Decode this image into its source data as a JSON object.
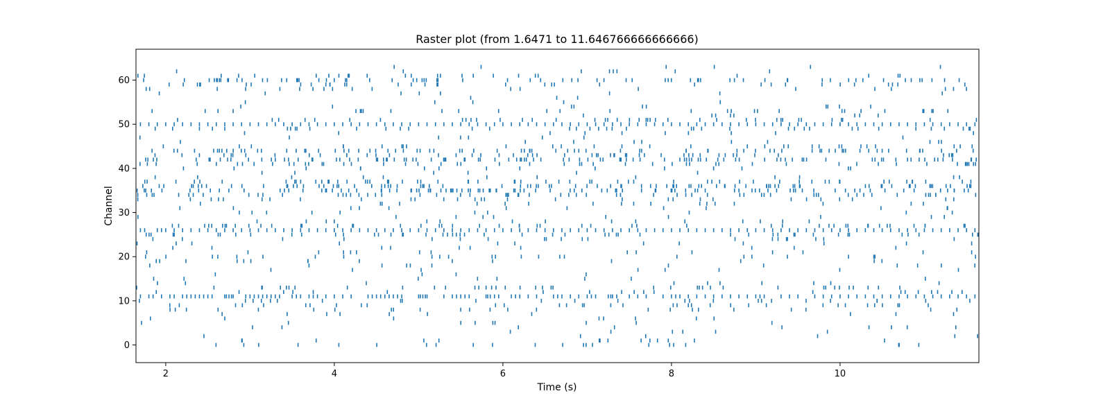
{
  "chart_data": {
    "type": "raster",
    "title": "Raster plot (from 1.6471 to 11.646766666666666)",
    "xlabel": "Time (s)",
    "ylabel": "Channel",
    "xlim": [
      1.6471,
      11.646766666666666
    ],
    "ylim": [
      -4,
      67
    ],
    "x_ticks": [
      2,
      4,
      6,
      8,
      10
    ],
    "y_ticks": [
      0,
      10,
      20,
      30,
      40,
      50,
      60
    ],
    "grid": false,
    "color": "#1f77b4",
    "channel_rates": {
      "0": 2.2,
      "1": 1.5,
      "2": 0.6,
      "3": 0.6,
      "4": 0.9,
      "5": 0.9,
      "6": 0.8,
      "7": 1.0,
      "8": 2.5,
      "9": 3.5,
      "10": 2.5,
      "11": 14.0,
      "12": 2.0,
      "13": 4.0,
      "14": 1.0,
      "15": 0.8,
      "16": 0.4,
      "17": 0.8,
      "18": 1.2,
      "19": 1.5,
      "20": 2.5,
      "21": 1.5,
      "22": 1.0,
      "23": 1.2,
      "24": 2.0,
      "25": 5.0,
      "26": 14.0,
      "27": 5.0,
      "28": 1.5,
      "29": 1.0,
      "30": 1.0,
      "31": 1.2,
      "32": 1.8,
      "33": 3.0,
      "34": 6.0,
      "35": 10.0,
      "36": 9.0,
      "37": 6.0,
      "38": 1.2,
      "39": 0.6,
      "40": 1.5,
      "41": 5.0,
      "42": 10.0,
      "43": 5.0,
      "44": 8.0,
      "45": 3.0,
      "46": 1.0,
      "47": 0.8,
      "48": 1.0,
      "49": 4.0,
      "50": 13.0,
      "51": 4.0,
      "52": 0.8,
      "53": 3.0,
      "54": 1.0,
      "55": 0.5,
      "56": 0.3,
      "57": 0.8,
      "58": 2.0,
      "59": 3.5,
      "60": 7.0,
      "61": 2.5,
      "62": 0.8,
      "63": 0.6
    },
    "spike_times": {
      "11": [
        1.7,
        1.8,
        1.85,
        1.95,
        2.05,
        2.1,
        2.2,
        2.25,
        2.3,
        2.35,
        2.4,
        2.45,
        2.5,
        2.55,
        2.7,
        2.72,
        2.75,
        2.78,
        2.8,
        2.95,
        3.0,
        3.05,
        3.1,
        3.15,
        3.2,
        3.25,
        3.3,
        3.35,
        3.5,
        3.55,
        3.6,
        3.7,
        3.75,
        3.8,
        3.9,
        4.0,
        4.1,
        4.2,
        4.4,
        4.45,
        4.5,
        4.55,
        4.6,
        4.65,
        4.7,
        4.75,
        4.8,
        5.0,
        5.02,
        5.05,
        5.08,
        5.1,
        5.3,
        5.4,
        5.45,
        5.5,
        5.55,
        5.6,
        5.8,
        5.82,
        5.85,
        5.9,
        5.95,
        6.1,
        6.15,
        6.2,
        6.3,
        6.4,
        6.6,
        6.65,
        6.7,
        6.8,
        6.9,
        7.0,
        7.05,
        7.1,
        7.25,
        7.28,
        7.3,
        7.35,
        7.5,
        7.6,
        7.7,
        7.9,
        8.0,
        8.05,
        8.1,
        8.2,
        8.3,
        8.4,
        8.5,
        8.6,
        8.7,
        8.8,
        8.9,
        9.0,
        9.05,
        9.1,
        9.3,
        9.4,
        9.5,
        9.7,
        9.8,
        9.9,
        10.0,
        10.1,
        10.2,
        10.3,
        10.4,
        10.5,
        10.6,
        10.7,
        10.8,
        10.9,
        11.0,
        11.1,
        11.2,
        11.3,
        11.4,
        11.5,
        11.6
      ],
      "26": [
        1.7,
        1.75,
        1.9,
        1.95,
        2.0,
        2.1,
        2.2,
        2.3,
        2.4,
        2.5,
        2.6,
        2.7,
        2.8,
        2.9,
        3.0,
        3.1,
        3.2,
        3.3,
        3.4,
        3.5,
        3.6,
        3.7,
        3.8,
        3.9,
        4.0,
        4.1,
        4.2,
        4.3,
        4.4,
        4.5,
        4.6,
        4.7,
        4.8,
        4.9,
        5.0,
        5.1,
        5.2,
        5.3,
        5.4,
        5.5,
        5.6,
        5.7,
        5.8,
        5.9,
        6.0,
        6.1,
        6.2,
        6.3,
        6.4,
        6.5,
        6.6,
        6.7,
        6.8,
        6.9,
        7.0,
        7.1,
        7.2,
        7.3,
        7.4,
        7.5,
        7.6,
        7.7,
        7.8,
        7.9,
        8.0,
        8.1,
        8.2,
        8.3,
        8.4,
        8.5,
        8.6,
        8.7,
        8.8,
        8.9,
        9.0,
        9.1,
        9.2,
        9.3,
        9.4,
        9.5,
        9.6,
        9.7,
        9.8,
        9.9,
        10.0,
        10.1,
        10.2,
        10.3,
        10.4,
        10.5,
        10.6,
        10.7,
        10.8,
        10.9,
        11.0,
        11.1,
        11.2,
        11.3,
        11.4,
        11.5,
        11.6
      ],
      "50": [
        1.7,
        1.8,
        1.9,
        2.0,
        2.1,
        2.2,
        2.3,
        2.4,
        2.5,
        2.6,
        2.7,
        2.8,
        2.9,
        3.0,
        3.1,
        3.2,
        3.3,
        3.4,
        3.5,
        3.6,
        3.7,
        3.8,
        3.9,
        4.0,
        4.1,
        4.2,
        4.3,
        4.4,
        4.5,
        4.6,
        4.7,
        4.8,
        4.9,
        5.0,
        5.1,
        5.2,
        5.3,
        5.4,
        5.5,
        5.6,
        5.7,
        5.8,
        5.9,
        6.0,
        6.1,
        6.2,
        6.3,
        6.4,
        6.5,
        6.6,
        6.7,
        6.8,
        6.9,
        7.0,
        7.1,
        7.2,
        7.3,
        7.4,
        7.5,
        7.6,
        7.7,
        7.8,
        7.9,
        8.0,
        8.1,
        8.2,
        8.3,
        8.4,
        8.5,
        8.6,
        8.7,
        8.8,
        8.9,
        9.0,
        9.1,
        9.2,
        9.3,
        9.4,
        9.5,
        9.6,
        9.7,
        9.8,
        9.9,
        10.0,
        10.1,
        10.2,
        10.3,
        10.4,
        10.5,
        10.6,
        10.7,
        10.8,
        10.9,
        11.0,
        11.1,
        11.2,
        11.3,
        11.4,
        11.5,
        11.6
      ]
    }
  }
}
